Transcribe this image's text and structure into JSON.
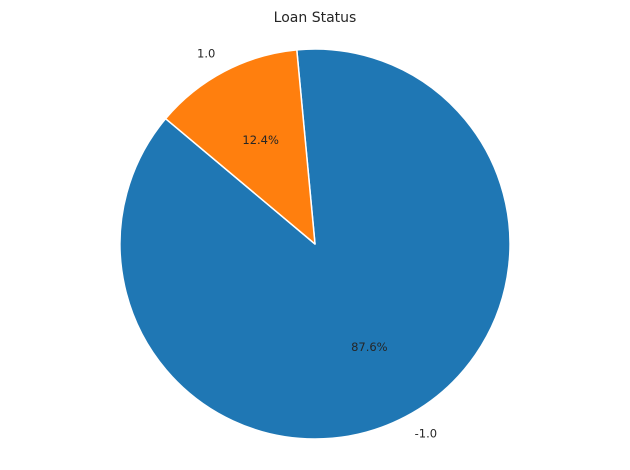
{
  "chart_data": {
    "type": "pie",
    "title": "Loan Status",
    "start_angle_deg": 140,
    "counterclockwise": true,
    "slices": [
      {
        "label": "-1.0",
        "value": 87.6,
        "pct_label": "87.6%",
        "color": "#1f77b4"
      },
      {
        "label": "1.0",
        "value": 12.4,
        "pct_label": "12.4%",
        "color": "#ff7f0e"
      }
    ],
    "edge_color": "#ffffff",
    "legend": "none"
  }
}
